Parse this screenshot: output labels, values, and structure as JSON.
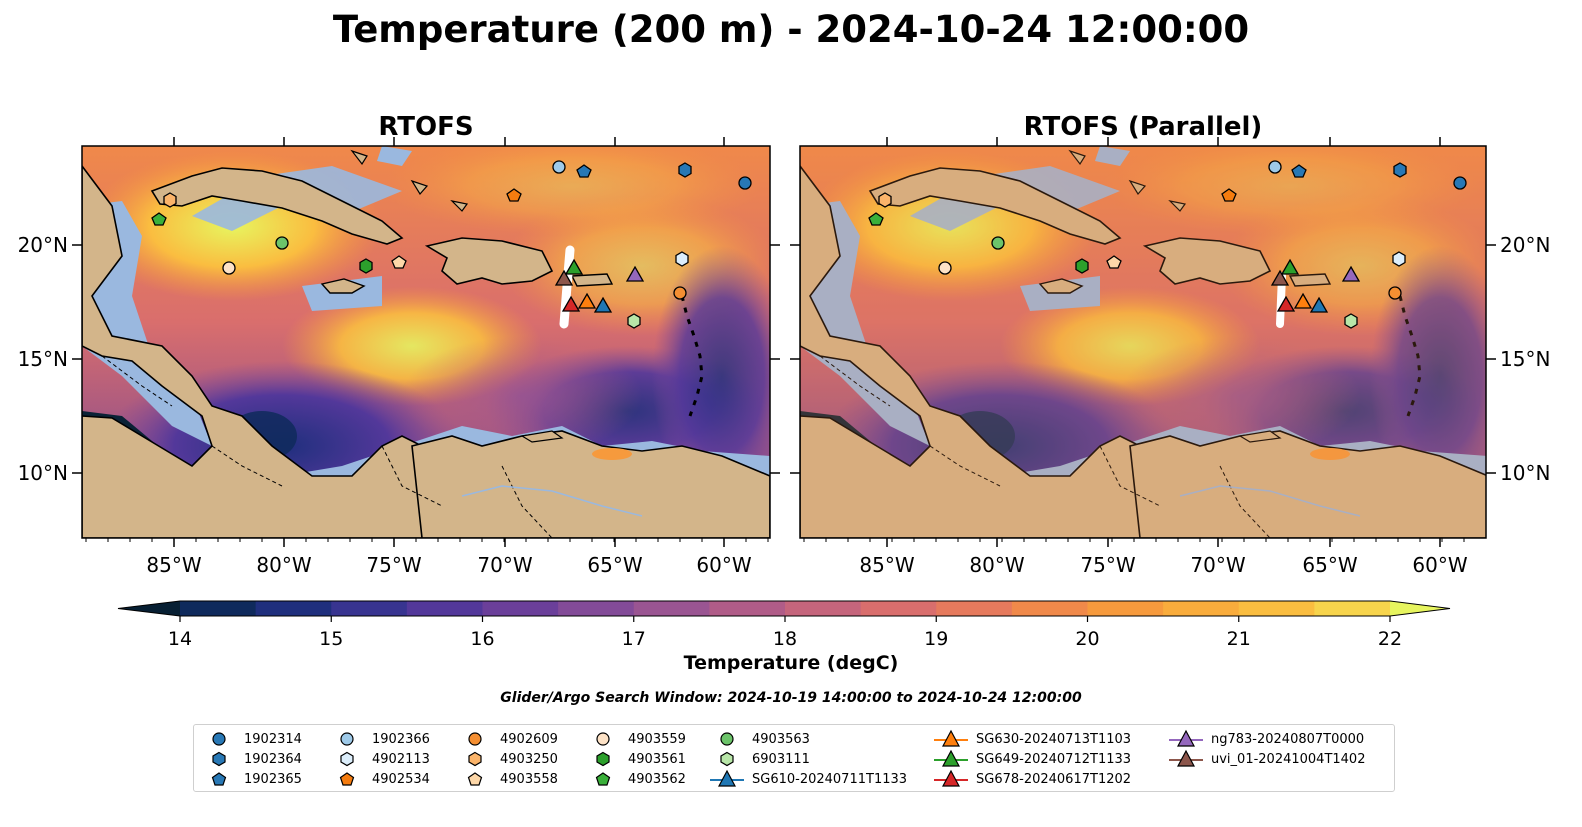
{
  "title": "Temperature (200 m) - 2024-10-24 12:00:00",
  "panels": [
    {
      "title": "RTOFS"
    },
    {
      "title": "RTOFS (Parallel)"
    }
  ],
  "axes": {
    "lat_ticks": [
      "20°N",
      "15°N",
      "10°N"
    ],
    "lon_ticks": [
      "85°W",
      "80°W",
      "75°W",
      "70°W",
      "65°W",
      "60°W"
    ]
  },
  "colorbar": {
    "label": "Temperature (degC)",
    "ticks": [
      "14",
      "15",
      "16",
      "17",
      "18",
      "19",
      "20",
      "21",
      "22"
    ],
    "min": 14,
    "max": 22,
    "colors": [
      "#071f33",
      "#0f2a5c",
      "#1f2f7d",
      "#383490",
      "#53389a",
      "#6b3f9a",
      "#834b98",
      "#9a5592",
      "#b05c88",
      "#c5657c",
      "#d96e6d",
      "#e67a5d",
      "#f0894a",
      "#f69a3d",
      "#f9ac3c",
      "#fabd40",
      "#f7d44c",
      "#e7f55f"
    ]
  },
  "search_window": "Glider/Argo Search Window: 2024-10-19 14:00:00 to 2024-10-24 12:00:00",
  "legend": [
    {
      "label": "1902314",
      "shape": "circle",
      "color": "#2878b5"
    },
    {
      "label": "1902364",
      "shape": "hexagon",
      "color": "#2878b5"
    },
    {
      "label": "1902365",
      "shape": "pentagon",
      "color": "#2878b5"
    },
    {
      "label": "1902366",
      "shape": "circle",
      "color": "#9ecae9"
    },
    {
      "label": "4902113",
      "shape": "hexagon",
      "color": "#dceefb"
    },
    {
      "label": "4902534",
      "shape": "pentagon",
      "color": "#f57c0f"
    },
    {
      "label": "4902609",
      "shape": "circle",
      "color": "#f58f32"
    },
    {
      "label": "4903250",
      "shape": "hexagon",
      "color": "#fbb46a"
    },
    {
      "label": "4903558",
      "shape": "pentagon",
      "color": "#fdd7a8"
    },
    {
      "label": "4903559",
      "shape": "circle",
      "color": "#fde2c6"
    },
    {
      "label": "4903561",
      "shape": "hexagon",
      "color": "#2ca02c"
    },
    {
      "label": "4903562",
      "shape": "pentagon",
      "color": "#3ab03a"
    },
    {
      "label": "4903563",
      "shape": "circle",
      "color": "#6cc46a"
    },
    {
      "label": "6903111",
      "shape": "hexagon",
      "color": "#b8e6a8"
    },
    {
      "label": "SG610-20240711T1133",
      "shape": "triangle-line",
      "color": "#1f77b4"
    },
    {
      "label": "SG630-20240713T1103",
      "shape": "triangle-line",
      "color": "#ff7f0e"
    },
    {
      "label": "SG649-20240712T1133",
      "shape": "triangle-line",
      "color": "#2ca02c"
    },
    {
      "label": "SG678-20240617T1202",
      "shape": "triangle-line",
      "color": "#d62728"
    },
    {
      "label": "ng783-20240807T0000",
      "shape": "triangle-line",
      "color": "#9467bd"
    },
    {
      "label": "uvi_01-20241004T1402",
      "shape": "triangle-line",
      "color": "#8c564b"
    }
  ],
  "colors": {
    "land": "#d3b58a",
    "shelf": "#9ab8df",
    "deep": "#0b2236"
  }
}
